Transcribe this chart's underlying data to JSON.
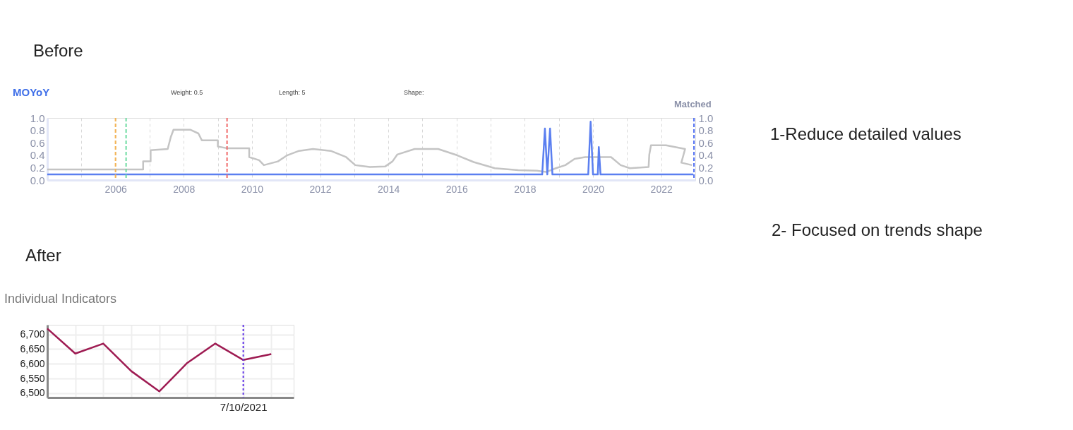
{
  "chart_data": [
    {
      "type": "line",
      "title": "MOYoY",
      "y2label": "Matched",
      "annotations": [
        "Before",
        "Weight: 0.5",
        "Length: 5",
        "Shape:",
        "1-Reduce detailed values",
        "2- Focused on trends shape"
      ],
      "xlim": [
        2004,
        2023
      ],
      "ylim": [
        0,
        1
      ],
      "y2lim": [
        0,
        1
      ],
      "xticks": [
        {
          "value": 2005,
          "label": null
        },
        2006,
        {
          "value": 2007,
          "label": null
        },
        2008,
        {
          "value": 2009,
          "label": null
        },
        2010,
        {
          "value": 2011,
          "label": null
        },
        2012,
        {
          "value": 2013,
          "label": null
        },
        2014,
        {
          "value": 2015,
          "label": null
        },
        2016,
        {
          "value": 2017,
          "label": null
        },
        2018,
        {
          "value": 2019,
          "label": null
        },
        2020,
        {
          "value": 2021,
          "label": null
        },
        2022
      ],
      "yticks": [
        {
          "value": 0,
          "label": "0.0"
        },
        {
          "value": 0.2,
          "label": "0.2"
        },
        {
          "value": 0.4,
          "label": "0.4"
        },
        {
          "value": 0.6,
          "label": "0.6"
        },
        {
          "value": 0.8,
          "label": "0.8"
        },
        {
          "value": 1,
          "label": "1.0"
        }
      ],
      "y2ticks": [
        {
          "value": 0,
          "label": "0.0"
        },
        {
          "value": 0.2,
          "label": "0.2"
        },
        {
          "value": 0.4,
          "label": "0.4"
        },
        {
          "value": 0.6,
          "label": "0.6"
        },
        {
          "value": 0.8,
          "label": "0.8"
        },
        {
          "value": 1,
          "label": "1.0"
        }
      ],
      "grid": "x",
      "legend": false,
      "marker": "none",
      "line_style": "solid",
      "series": [
        {
          "color": "#c4c4c4",
          "x": [
            2004.0,
            2006.81,
            2006.81,
            2007.03,
            2007.03,
            2007.53,
            2007.62,
            2007.7,
            2008.19,
            2008.43,
            2008.53,
            2009.0,
            2009.0,
            2009.29,
            2009.92,
            2009.92,
            2010.21,
            2010.35,
            2010.76,
            2011.04,
            2011.38,
            2011.79,
            2012.31,
            2012.76,
            2013.03,
            2013.46,
            2013.91,
            2014.12,
            2014.26,
            2014.77,
            2015.46,
            2016.01,
            2016.5,
            2017.12,
            2017.81,
            2018.36,
            2018.63,
            2018.91,
            2019.19,
            2019.46,
            2019.77,
            2020.53,
            2020.81,
            2021.08,
            2021.63,
            2021.65,
            2021.7,
            2022.14,
            2022.7,
            2022.59,
            2022.9
          ],
          "values": [
            0.17,
            0.17,
            0.3,
            0.3,
            0.48,
            0.5,
            0.69,
            0.81,
            0.81,
            0.75,
            0.64,
            0.64,
            0.54,
            0.51,
            0.51,
            0.37,
            0.32,
            0.24,
            0.3,
            0.4,
            0.47,
            0.5,
            0.47,
            0.37,
            0.24,
            0.21,
            0.22,
            0.3,
            0.41,
            0.5,
            0.5,
            0.4,
            0.29,
            0.19,
            0.16,
            0.15,
            0.13,
            0.19,
            0.24,
            0.34,
            0.37,
            0.37,
            0.24,
            0.19,
            0.21,
            0.41,
            0.56,
            0.56,
            0.5,
            0.28,
            0.24
          ]
        },
        {
          "color": "#5b7ff0",
          "axis": "y2",
          "x": [
            2004.0,
            2018.51,
            2018.59,
            2018.66,
            2018.74,
            2018.81,
            2019.86,
            2019.93,
            2020.0,
            2020.14,
            2020.17,
            2020.22,
            2022.94
          ],
          "values": [
            0.09,
            0.09,
            0.83,
            0.09,
            0.83,
            0.09,
            0.09,
            0.94,
            0.09,
            0.09,
            0.53,
            0.09,
            0.09
          ]
        }
      ],
      "ref_lines": [
        {
          "axis": "x",
          "value": 2006.0,
          "color": "#f5b555",
          "line_style": "dashed"
        },
        {
          "axis": "x",
          "value": 2006.31,
          "color": "#6ddba0",
          "line_style": "dashed"
        },
        {
          "axis": "x",
          "value": 2009.27,
          "color": "#f06a6a",
          "line_style": "dashed"
        },
        {
          "axis": "x",
          "value": 2022.96,
          "color": "#4f6ef2",
          "line_style": "dashed"
        }
      ]
    },
    {
      "type": "line",
      "title": "Individual Indicators",
      "annotations": [
        "After"
      ],
      "categories": [
        null,
        null,
        null,
        null,
        null,
        null,
        null,
        "7/10/2021",
        null
      ],
      "values": [
        6720,
        6635,
        6669,
        6575,
        6506,
        6603,
        6669,
        6613,
        6633
      ],
      "color": "#9e1b52",
      "ylim": [
        6485,
        6733
      ],
      "yticks": [
        {
          "value": 6500,
          "label": "6,500"
        },
        {
          "value": 6550,
          "label": "6,550"
        },
        {
          "value": 6600,
          "label": "6,600"
        },
        {
          "value": 6650,
          "label": "6,650"
        },
        {
          "value": 6700,
          "label": "6,700"
        }
      ],
      "grid": true,
      "legend": false,
      "marker": "none",
      "line_style": "solid",
      "ref_lines": [
        {
          "axis": "x",
          "value": "7/10/2021",
          "color": "#6236e8",
          "line_style": "dotted"
        }
      ]
    }
  ]
}
